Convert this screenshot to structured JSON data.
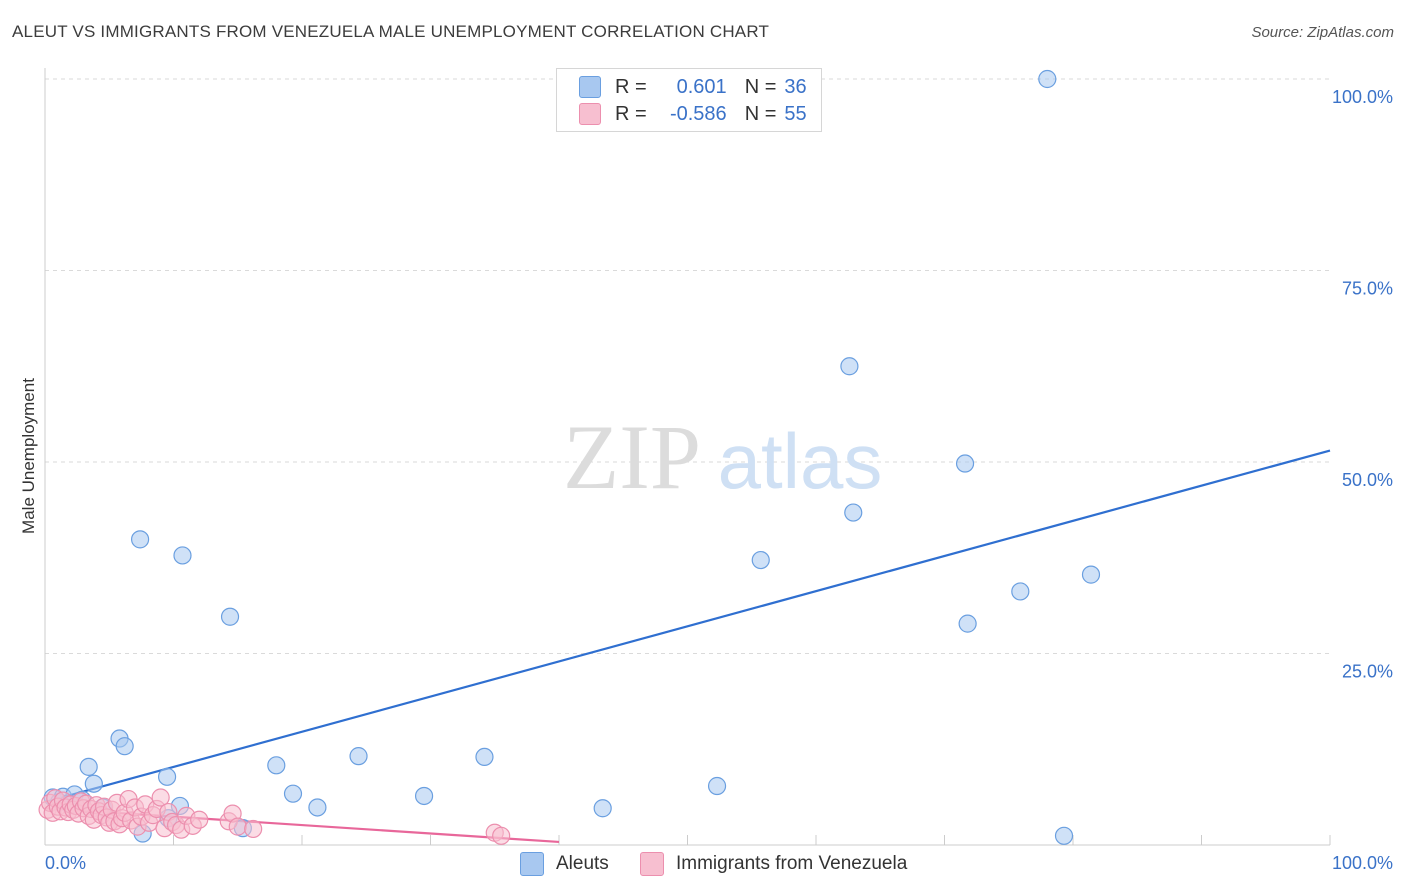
{
  "title": "ALEUT VS IMMIGRANTS FROM VENEZUELA MALE UNEMPLOYMENT CORRELATION CHART",
  "source": "Source: ZipAtlas.com",
  "watermark": {
    "zip": "ZIP",
    "atlas": "atlas"
  },
  "legend": {
    "rows": [
      {
        "r_label": "R =",
        "r_value": "0.601",
        "n_label": "N =",
        "n_value": "36",
        "color": "#a8c8f0",
        "border": "#6a9fe0"
      },
      {
        "r_label": "R =",
        "r_value": "-0.586",
        "n_label": "N =",
        "n_value": "55",
        "color": "#f7bfd0",
        "border": "#ec8fae"
      }
    ]
  },
  "bottom_legend": {
    "series1": "Aleuts",
    "series2": "Immigrants from Venezuela"
  },
  "chart_data": {
    "type": "scatter",
    "title": "ALEUT VS IMMIGRANTS FROM VENEZUELA MALE UNEMPLOYMENT CORRELATION CHART",
    "xlabel": "",
    "ylabel": "Male Unemployment",
    "xlim": [
      0,
      100
    ],
    "ylim": [
      0,
      100
    ],
    "x_tick_labels": {
      "min": "0.0%",
      "max": "100.0%"
    },
    "y_tick_labels": [
      {
        "value": 25,
        "label": "25.0%"
      },
      {
        "value": 50,
        "label": "50.0%"
      },
      {
        "value": 75,
        "label": "75.0%"
      },
      {
        "value": 100,
        "label": "100.0%"
      }
    ],
    "series": [
      {
        "name": "Aleuts",
        "color": "#6a9fe0",
        "fill": "#a8c8f0",
        "trendline": {
          "x": [
            0,
            100
          ],
          "y": [
            5.6,
            51.5
          ],
          "color": "#2f6fd0"
        },
        "points": [
          [
            0.6,
            6.2
          ],
          [
            1.1,
            5.6
          ],
          [
            1.4,
            6.3
          ],
          [
            2.3,
            6.6
          ],
          [
            3.4,
            10.2
          ],
          [
            3.8,
            8.0
          ],
          [
            5.8,
            13.9
          ],
          [
            6.2,
            12.9
          ],
          [
            7.4,
            39.9
          ],
          [
            9.5,
            8.9
          ],
          [
            9.6,
            3.5
          ],
          [
            10.5,
            5.1
          ],
          [
            10.7,
            37.8
          ],
          [
            14.4,
            29.8
          ],
          [
            15.4,
            2.2
          ],
          [
            18.0,
            10.4
          ],
          [
            19.3,
            6.7
          ],
          [
            21.2,
            4.9
          ],
          [
            24.4,
            11.6
          ],
          [
            29.5,
            6.4
          ],
          [
            34.2,
            11.5
          ],
          [
            43.4,
            4.8
          ],
          [
            52.3,
            7.7
          ],
          [
            55.7,
            37.2
          ],
          [
            62.6,
            62.5
          ],
          [
            62.9,
            43.4
          ],
          [
            71.6,
            49.8
          ],
          [
            71.8,
            28.9
          ],
          [
            75.9,
            33.1
          ],
          [
            78.0,
            100.0
          ],
          [
            79.3,
            1.2
          ],
          [
            81.4,
            35.3
          ],
          [
            7.6,
            1.5
          ],
          [
            1.8,
            5.4
          ],
          [
            2.9,
            5.9
          ],
          [
            4.5,
            4.9
          ]
        ]
      },
      {
        "name": "Immigrants from Venezuela",
        "color": "#ec8fae",
        "fill": "#f7bfd0",
        "trendline": {
          "x": [
            0,
            40
          ],
          "y": [
            4.8,
            0.4
          ],
          "color": "#e8679a"
        },
        "points": [
          [
            0.2,
            4.6
          ],
          [
            0.4,
            5.5
          ],
          [
            0.6,
            4.2
          ],
          [
            0.8,
            6.1
          ],
          [
            1.0,
            5.0
          ],
          [
            1.2,
            4.4
          ],
          [
            1.4,
            5.8
          ],
          [
            1.6,
            4.9
          ],
          [
            1.8,
            4.3
          ],
          [
            2.0,
            5.3
          ],
          [
            2.2,
            4.6
          ],
          [
            2.4,
            5.1
          ],
          [
            2.6,
            4.1
          ],
          [
            2.8,
            5.7
          ],
          [
            3.0,
            4.8
          ],
          [
            3.2,
            5.4
          ],
          [
            3.4,
            3.8
          ],
          [
            3.6,
            4.7
          ],
          [
            3.8,
            3.3
          ],
          [
            4.0,
            5.2
          ],
          [
            4.2,
            4.4
          ],
          [
            4.4,
            3.9
          ],
          [
            4.6,
            5.0
          ],
          [
            4.8,
            3.6
          ],
          [
            5.0,
            2.9
          ],
          [
            5.2,
            4.6
          ],
          [
            5.4,
            3.1
          ],
          [
            5.6,
            5.5
          ],
          [
            5.8,
            2.7
          ],
          [
            6.0,
            3.5
          ],
          [
            6.2,
            4.2
          ],
          [
            6.5,
            6.0
          ],
          [
            6.7,
            3.2
          ],
          [
            7.0,
            4.9
          ],
          [
            7.2,
            2.4
          ],
          [
            7.5,
            3.7
          ],
          [
            7.8,
            5.3
          ],
          [
            8.1,
            2.9
          ],
          [
            8.4,
            3.9
          ],
          [
            8.7,
            4.7
          ],
          [
            9.0,
            6.2
          ],
          [
            9.3,
            2.2
          ],
          [
            9.6,
            4.3
          ],
          [
            9.9,
            3.0
          ],
          [
            10.2,
            2.6
          ],
          [
            10.6,
            2.0
          ],
          [
            11.0,
            3.8
          ],
          [
            11.5,
            2.5
          ],
          [
            12.0,
            3.3
          ],
          [
            14.3,
            3.1
          ],
          [
            14.6,
            4.1
          ],
          [
            15.0,
            2.4
          ],
          [
            16.2,
            2.1
          ],
          [
            35.0,
            1.6
          ],
          [
            35.5,
            1.2
          ]
        ]
      }
    ],
    "grid": true,
    "legend_position": "top-center"
  }
}
